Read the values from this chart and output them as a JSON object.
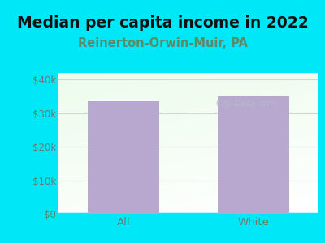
{
  "title": "Median per capita income in 2022",
  "subtitle": "Reinerton-Orwin-Muir, PA",
  "categories": [
    "All",
    "White"
  ],
  "values": [
    33500,
    35000
  ],
  "bar_color": "#b8a8d0",
  "title_fontsize": 13.5,
  "title_color": "#111111",
  "subtitle_fontsize": 10.5,
  "subtitle_color": "#5a8a6a",
  "background_color": "#00e8f8",
  "ylim": [
    0,
    42000
  ],
  "yticks": [
    0,
    10000,
    20000,
    30000,
    40000
  ],
  "ytick_labels": [
    "$0",
    "$10k",
    "$20k",
    "$30k",
    "$40k"
  ],
  "tick_color": "#6a7a6a",
  "watermark": "City-Data.com",
  "watermark_color": "#b0c0c8",
  "grid_color": "#d0d8d0"
}
